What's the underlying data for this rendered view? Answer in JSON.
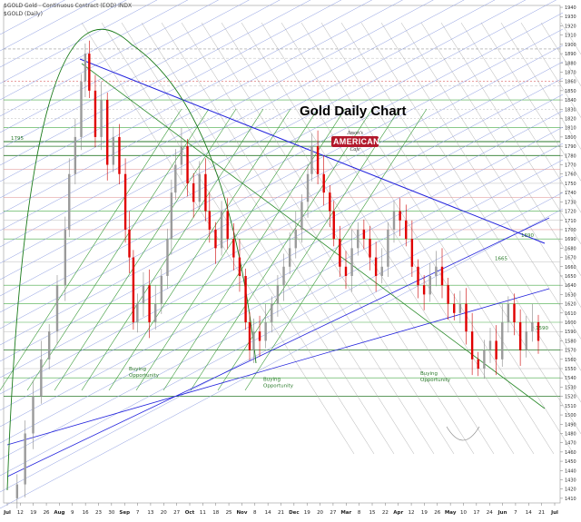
{
  "header": {
    "symbol_line": "$GOLD Gold - Continuous Contract (EOD) INDX",
    "sub_line": "$GOLD (Daily)"
  },
  "title": "Gold Daily Chart",
  "logo": {
    "line1": "Jason's",
    "line2": "AMERICAN",
    "line3": "Cafe"
  },
  "colors": {
    "up_candle": "#9a9a9a",
    "down_candle": "#e00000",
    "blue_trend": "#2222dd",
    "green_arc": "#1a7a1a",
    "green_line": "#2a8a2a",
    "red_level": "#e08080",
    "fan_gray": "#b0b0b0",
    "fan_blue": "#8a9ae0"
  },
  "chart_data": {
    "type": "candlestick",
    "title": "Gold Daily Chart",
    "ylim": [
      1405,
      1942
    ],
    "y_ticks": [
      1940,
      1930,
      1920,
      1910,
      1900,
      1890,
      1880,
      1870,
      1860,
      1850,
      1840,
      1830,
      1820,
      1810,
      1800,
      1790,
      1780,
      1770,
      1760,
      1750,
      1740,
      1730,
      1720,
      1710,
      1700,
      1690,
      1680,
      1670,
      1660,
      1650,
      1640,
      1630,
      1620,
      1610,
      1600,
      1590,
      1580,
      1570,
      1560,
      1550,
      1540,
      1530,
      1520,
      1510,
      1500,
      1490,
      1480,
      1470,
      1460,
      1450,
      1440,
      1430,
      1420,
      1410
    ],
    "x_tick_labels": [
      "Jul",
      "12",
      "19",
      "26",
      "Aug",
      "9",
      "16",
      "23",
      "30",
      "Sep",
      "7",
      "13",
      "20",
      "27",
      "Oct",
      "11",
      "18",
      "25",
      "Nov",
      "8",
      "14",
      "21",
      "Dec",
      "19",
      "20",
      "27",
      "Mar",
      "8",
      "15",
      "22",
      "Apr",
      "12",
      "19",
      "26",
      "May",
      "10",
      "17",
      "24",
      "Jun",
      "7",
      "14",
      "21",
      "Jul"
    ],
    "level_labels": [
      "1795",
      "1690",
      "1665",
      "1590"
    ],
    "annotations": [
      "Buying Opportunity",
      "Buying Opportunity",
      "Buying Opportunity"
    ],
    "path_points": [
      [
        0,
        1410
      ],
      [
        4,
        1425
      ],
      [
        8,
        1480
      ],
      [
        12,
        1520
      ],
      [
        16,
        1560
      ],
      [
        20,
        1590
      ],
      [
        24,
        1640
      ],
      [
        28,
        1700
      ],
      [
        30,
        1760
      ],
      [
        33,
        1800
      ],
      [
        36,
        1860
      ],
      [
        38,
        1890
      ],
      [
        40,
        1850
      ],
      [
        43,
        1800
      ],
      [
        46,
        1840
      ],
      [
        49,
        1770
      ],
      [
        52,
        1800
      ],
      [
        55,
        1760
      ],
      [
        58,
        1700
      ],
      [
        60,
        1670
      ],
      [
        62,
        1600
      ],
      [
        64,
        1620
      ],
      [
        67,
        1640
      ],
      [
        70,
        1600
      ],
      [
        73,
        1620
      ],
      [
        76,
        1650
      ],
      [
        79,
        1690
      ],
      [
        81,
        1740
      ],
      [
        83,
        1770
      ],
      [
        86,
        1790
      ],
      [
        89,
        1750
      ],
      [
        92,
        1730
      ],
      [
        95,
        1760
      ],
      [
        98,
        1720
      ],
      [
        100,
        1700
      ],
      [
        103,
        1680
      ],
      [
        106,
        1720
      ],
      [
        109,
        1690
      ],
      [
        112,
        1670
      ],
      [
        115,
        1650
      ],
      [
        118,
        1600
      ],
      [
        120,
        1570
      ],
      [
        122,
        1590
      ],
      [
        125,
        1580
      ],
      [
        128,
        1600
      ],
      [
        131,
        1620
      ],
      [
        134,
        1640
      ],
      [
        137,
        1660
      ],
      [
        140,
        1680
      ],
      [
        143,
        1700
      ],
      [
        146,
        1730
      ],
      [
        149,
        1760
      ],
      [
        151,
        1790
      ],
      [
        154,
        1760
      ],
      [
        157,
        1740
      ],
      [
        160,
        1720
      ],
      [
        162,
        1690
      ],
      [
        165,
        1660
      ],
      [
        168,
        1650
      ],
      [
        171,
        1680
      ],
      [
        174,
        1700
      ],
      [
        177,
        1690
      ],
      [
        180,
        1670
      ],
      [
        183,
        1650
      ],
      [
        186,
        1660
      ],
      [
        189,
        1700
      ],
      [
        192,
        1720
      ],
      [
        195,
        1710
      ],
      [
        198,
        1690
      ],
      [
        201,
        1660
      ],
      [
        204,
        1640
      ],
      [
        207,
        1630
      ],
      [
        210,
        1650
      ],
      [
        213,
        1660
      ],
      [
        216,
        1640
      ],
      [
        219,
        1620
      ],
      [
        222,
        1610
      ],
      [
        225,
        1620
      ],
      [
        228,
        1590
      ],
      [
        231,
        1560
      ],
      [
        234,
        1550
      ],
      [
        237,
        1570
      ],
      [
        240,
        1580
      ],
      [
        243,
        1560
      ],
      [
        246,
        1600
      ],
      [
        249,
        1620
      ],
      [
        252,
        1600
      ],
      [
        255,
        1570
      ],
      [
        258,
        1590
      ],
      [
        261,
        1600
      ],
      [
        264,
        1580
      ]
    ],
    "x_domain": [
      0,
      264
    ]
  }
}
